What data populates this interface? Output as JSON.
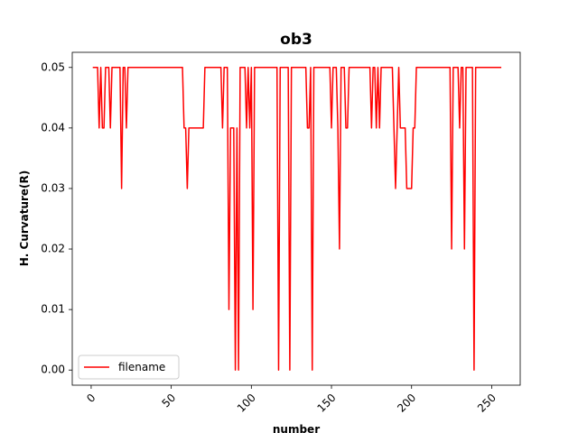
{
  "chart_data": {
    "type": "line",
    "title": "ob3",
    "xlabel": "number",
    "ylabel": "H. Curvature(R)",
    "xlim": [
      -11.8,
      267.8
    ],
    "ylim": [
      -0.0025,
      0.0525
    ],
    "xticks": [
      0,
      50,
      100,
      150,
      200,
      250
    ],
    "yticks": [
      0.0,
      0.01,
      0.02,
      0.03,
      0.04,
      0.05
    ],
    "ytick_labels": [
      "0.00",
      "0.01",
      "0.02",
      "0.03",
      "0.04",
      "0.05"
    ],
    "grid": false,
    "legend": "lower-left",
    "series": [
      {
        "name": "filename",
        "color": "#ff0000",
        "points": [
          [
            1,
            0.05
          ],
          [
            2,
            0.05
          ],
          [
            3,
            0.05
          ],
          [
            4,
            0.05
          ],
          [
            5,
            0.04
          ],
          [
            6,
            0.05
          ],
          [
            7,
            0.04
          ],
          [
            8,
            0.04
          ],
          [
            9,
            0.05
          ],
          [
            10,
            0.05
          ],
          [
            11,
            0.05
          ],
          [
            12,
            0.04
          ],
          [
            13,
            0.05
          ],
          [
            14,
            0.05
          ],
          [
            15,
            0.05
          ],
          [
            16,
            0.05
          ],
          [
            17,
            0.05
          ],
          [
            18,
            0.05
          ],
          [
            19,
            0.03
          ],
          [
            20,
            0.05
          ],
          [
            21,
            0.05
          ],
          [
            22,
            0.04
          ],
          [
            23,
            0.05
          ],
          [
            24,
            0.05
          ],
          [
            25,
            0.05
          ],
          [
            26,
            0.05
          ],
          [
            27,
            0.05
          ],
          [
            28,
            0.05
          ],
          [
            29,
            0.05
          ],
          [
            30,
            0.05
          ],
          [
            31,
            0.05
          ],
          [
            32,
            0.05
          ],
          [
            33,
            0.05
          ],
          [
            34,
            0.05
          ],
          [
            35,
            0.05
          ],
          [
            36,
            0.05
          ],
          [
            37,
            0.05
          ],
          [
            38,
            0.05
          ],
          [
            39,
            0.05
          ],
          [
            40,
            0.05
          ],
          [
            41,
            0.05
          ],
          [
            42,
            0.05
          ],
          [
            43,
            0.05
          ],
          [
            44,
            0.05
          ],
          [
            45,
            0.05
          ],
          [
            46,
            0.05
          ],
          [
            47,
            0.05
          ],
          [
            48,
            0.05
          ],
          [
            49,
            0.05
          ],
          [
            50,
            0.05
          ],
          [
            51,
            0.05
          ],
          [
            52,
            0.05
          ],
          [
            53,
            0.05
          ],
          [
            54,
            0.05
          ],
          [
            55,
            0.05
          ],
          [
            56,
            0.05
          ],
          [
            57,
            0.05
          ],
          [
            58,
            0.04
          ],
          [
            59,
            0.04
          ],
          [
            60,
            0.03
          ],
          [
            61,
            0.04
          ],
          [
            62,
            0.04
          ],
          [
            63,
            0.04
          ],
          [
            64,
            0.04
          ],
          [
            65,
            0.04
          ],
          [
            66,
            0.04
          ],
          [
            67,
            0.04
          ],
          [
            68,
            0.04
          ],
          [
            69,
            0.04
          ],
          [
            70,
            0.04
          ],
          [
            71,
            0.05
          ],
          [
            72,
            0.05
          ],
          [
            73,
            0.05
          ],
          [
            74,
            0.05
          ],
          [
            75,
            0.05
          ],
          [
            76,
            0.05
          ],
          [
            77,
            0.05
          ],
          [
            78,
            0.05
          ],
          [
            79,
            0.05
          ],
          [
            80,
            0.05
          ],
          [
            81,
            0.05
          ],
          [
            82,
            0.04
          ],
          [
            83,
            0.05
          ],
          [
            84,
            0.05
          ],
          [
            85,
            0.05
          ],
          [
            86,
            0.01
          ],
          [
            87,
            0.04
          ],
          [
            88,
            0.04
          ],
          [
            89,
            0.04
          ],
          [
            90,
            0.0
          ],
          [
            91,
            0.04
          ],
          [
            92,
            0.0
          ],
          [
            93,
            0.05
          ],
          [
            94,
            0.05
          ],
          [
            95,
            0.05
          ],
          [
            96,
            0.05
          ],
          [
            97,
            0.04
          ],
          [
            98,
            0.05
          ],
          [
            99,
            0.04
          ],
          [
            100,
            0.05
          ],
          [
            101,
            0.01
          ],
          [
            102,
            0.05
          ],
          [
            103,
            0.05
          ],
          [
            104,
            0.05
          ],
          [
            105,
            0.05
          ],
          [
            106,
            0.05
          ],
          [
            107,
            0.05
          ],
          [
            108,
            0.05
          ],
          [
            109,
            0.05
          ],
          [
            110,
            0.05
          ],
          [
            111,
            0.05
          ],
          [
            112,
            0.05
          ],
          [
            113,
            0.05
          ],
          [
            114,
            0.05
          ],
          [
            115,
            0.05
          ],
          [
            116,
            0.05
          ],
          [
            117,
            0.0
          ],
          [
            118,
            0.05
          ],
          [
            119,
            0.05
          ],
          [
            120,
            0.05
          ],
          [
            121,
            0.05
          ],
          [
            122,
            0.05
          ],
          [
            123,
            0.05
          ],
          [
            124,
            0.0
          ],
          [
            125,
            0.05
          ],
          [
            126,
            0.05
          ],
          [
            127,
            0.05
          ],
          [
            128,
            0.05
          ],
          [
            129,
            0.05
          ],
          [
            130,
            0.05
          ],
          [
            131,
            0.05
          ],
          [
            132,
            0.05
          ],
          [
            133,
            0.05
          ],
          [
            134,
            0.05
          ],
          [
            135,
            0.04
          ],
          [
            136,
            0.04
          ],
          [
            137,
            0.05
          ],
          [
            138,
            0.0
          ],
          [
            139,
            0.05
          ],
          [
            140,
            0.05
          ],
          [
            141,
            0.05
          ],
          [
            142,
            0.05
          ],
          [
            143,
            0.05
          ],
          [
            144,
            0.05
          ],
          [
            145,
            0.05
          ],
          [
            146,
            0.05
          ],
          [
            147,
            0.05
          ],
          [
            148,
            0.05
          ],
          [
            149,
            0.05
          ],
          [
            150,
            0.04
          ],
          [
            151,
            0.05
          ],
          [
            152,
            0.05
          ],
          [
            153,
            0.05
          ],
          [
            154,
            0.04
          ],
          [
            155,
            0.02
          ],
          [
            156,
            0.05
          ],
          [
            157,
            0.05
          ],
          [
            158,
            0.05
          ],
          [
            159,
            0.04
          ],
          [
            160,
            0.04
          ],
          [
            161,
            0.05
          ],
          [
            162,
            0.05
          ],
          [
            163,
            0.05
          ],
          [
            164,
            0.05
          ],
          [
            165,
            0.05
          ],
          [
            166,
            0.05
          ],
          [
            167,
            0.05
          ],
          [
            168,
            0.05
          ],
          [
            169,
            0.05
          ],
          [
            170,
            0.05
          ],
          [
            171,
            0.05
          ],
          [
            172,
            0.05
          ],
          [
            173,
            0.05
          ],
          [
            174,
            0.05
          ],
          [
            175,
            0.04
          ],
          [
            176,
            0.05
          ],
          [
            177,
            0.05
          ],
          [
            178,
            0.04
          ],
          [
            179,
            0.05
          ],
          [
            180,
            0.04
          ],
          [
            181,
            0.05
          ],
          [
            182,
            0.05
          ],
          [
            183,
            0.05
          ],
          [
            184,
            0.05
          ],
          [
            185,
            0.05
          ],
          [
            186,
            0.05
          ],
          [
            187,
            0.05
          ],
          [
            188,
            0.05
          ],
          [
            189,
            0.04
          ],
          [
            190,
            0.03
          ],
          [
            191,
            0.04
          ],
          [
            192,
            0.05
          ],
          [
            193,
            0.04
          ],
          [
            194,
            0.04
          ],
          [
            195,
            0.04
          ],
          [
            196,
            0.04
          ],
          [
            197,
            0.03
          ],
          [
            198,
            0.03
          ],
          [
            199,
            0.03
          ],
          [
            200,
            0.03
          ],
          [
            201,
            0.04
          ],
          [
            202,
            0.04
          ],
          [
            203,
            0.05
          ],
          [
            204,
            0.05
          ],
          [
            205,
            0.05
          ],
          [
            206,
            0.05
          ],
          [
            207,
            0.05
          ],
          [
            208,
            0.05
          ],
          [
            209,
            0.05
          ],
          [
            210,
            0.05
          ],
          [
            211,
            0.05
          ],
          [
            212,
            0.05
          ],
          [
            213,
            0.05
          ],
          [
            214,
            0.05
          ],
          [
            215,
            0.05
          ],
          [
            216,
            0.05
          ],
          [
            217,
            0.05
          ],
          [
            218,
            0.05
          ],
          [
            219,
            0.05
          ],
          [
            220,
            0.05
          ],
          [
            221,
            0.05
          ],
          [
            222,
            0.05
          ],
          [
            223,
            0.05
          ],
          [
            224,
            0.05
          ],
          [
            225,
            0.02
          ],
          [
            226,
            0.05
          ],
          [
            227,
            0.05
          ],
          [
            228,
            0.05
          ],
          [
            229,
            0.05
          ],
          [
            230,
            0.04
          ],
          [
            231,
            0.05
          ],
          [
            232,
            0.05
          ],
          [
            233,
            0.02
          ],
          [
            234,
            0.05
          ],
          [
            235,
            0.05
          ],
          [
            236,
            0.05
          ],
          [
            237,
            0.05
          ],
          [
            238,
            0.05
          ],
          [
            239,
            0.0
          ],
          [
            240,
            0.05
          ],
          [
            241,
            0.05
          ],
          [
            242,
            0.05
          ],
          [
            243,
            0.05
          ],
          [
            244,
            0.05
          ],
          [
            245,
            0.05
          ],
          [
            246,
            0.05
          ],
          [
            247,
            0.05
          ],
          [
            248,
            0.05
          ],
          [
            249,
            0.05
          ],
          [
            250,
            0.05
          ],
          [
            251,
            0.05
          ],
          [
            252,
            0.05
          ],
          [
            253,
            0.05
          ],
          [
            254,
            0.05
          ],
          [
            255,
            0.05
          ],
          [
            256,
            0.05
          ]
        ]
      }
    ]
  }
}
